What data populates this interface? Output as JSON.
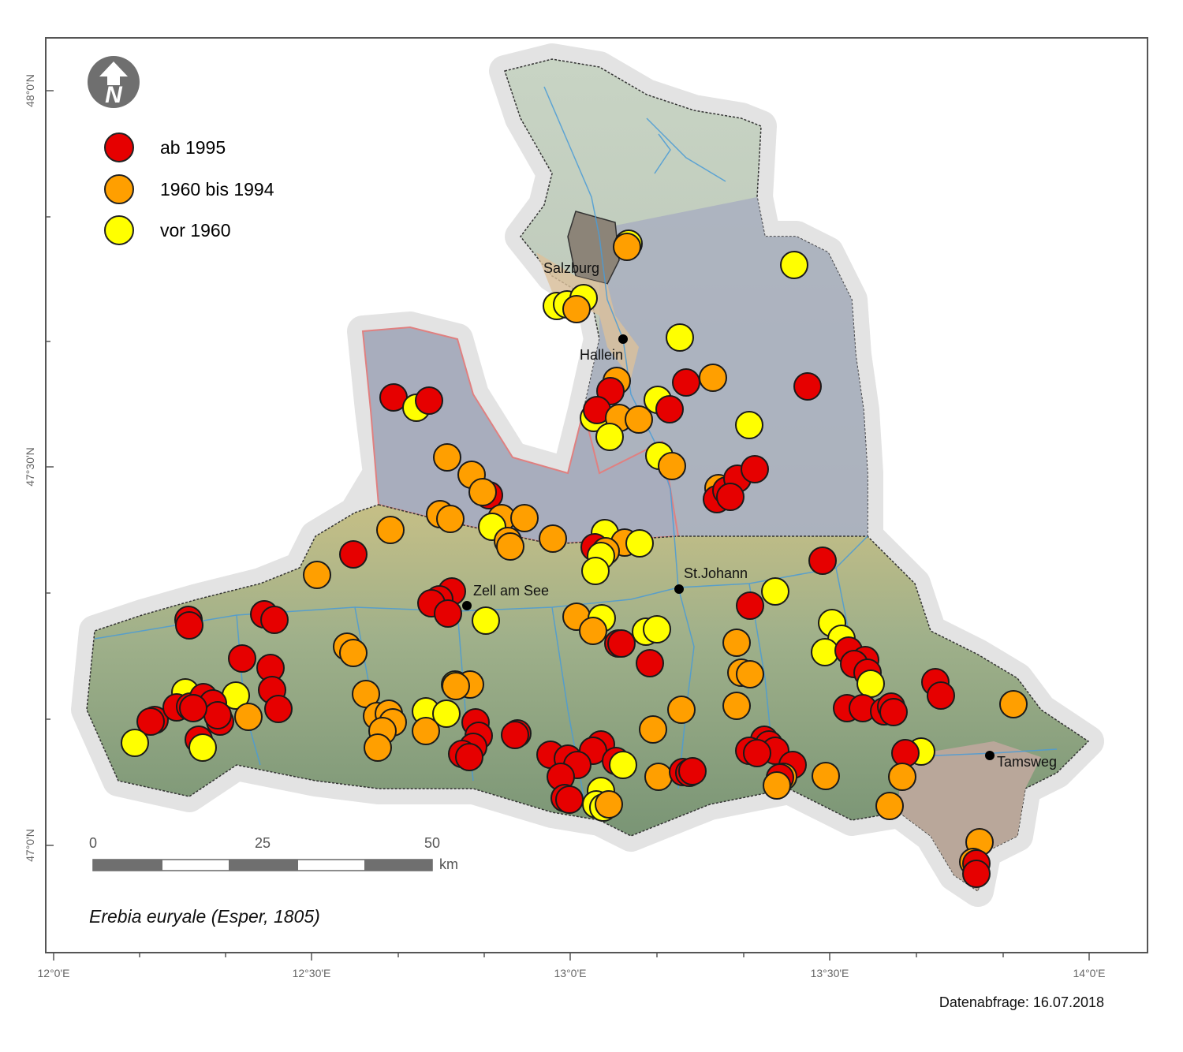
{
  "legend": {
    "items": [
      {
        "label": "ab 1995",
        "color": "#e60000"
      },
      {
        "label": "1960 bis 1994",
        "color": "#ff9f00"
      },
      {
        "label": "vor 1960",
        "color": "#ffff00"
      }
    ]
  },
  "north_arrow": {
    "icon": "north-arrow-icon",
    "letter": "N"
  },
  "towns": [
    {
      "name": "Salzburg"
    },
    {
      "name": "Hallein"
    },
    {
      "name": "St.Johann"
    },
    {
      "name": "Zell am See"
    },
    {
      "name": "Tamsweg"
    }
  ],
  "scalebar": {
    "ticks": [
      "0",
      "25",
      "50"
    ],
    "unit": "km"
  },
  "axes": {
    "lat_labels": [
      "48°0'N",
      "47°30'N",
      "47°0'N"
    ],
    "lon_labels": [
      "12°0'E",
      "12°30'E",
      "13°0'E",
      "13°30'E",
      "14°0'E"
    ]
  },
  "title": "Erebia euryale (Esper, 1805)",
  "query_date": "Datenabfrage: 16.07.2018",
  "colors": {
    "red": "#e60000",
    "orange": "#ff9f00",
    "yellow": "#ffff00"
  }
}
